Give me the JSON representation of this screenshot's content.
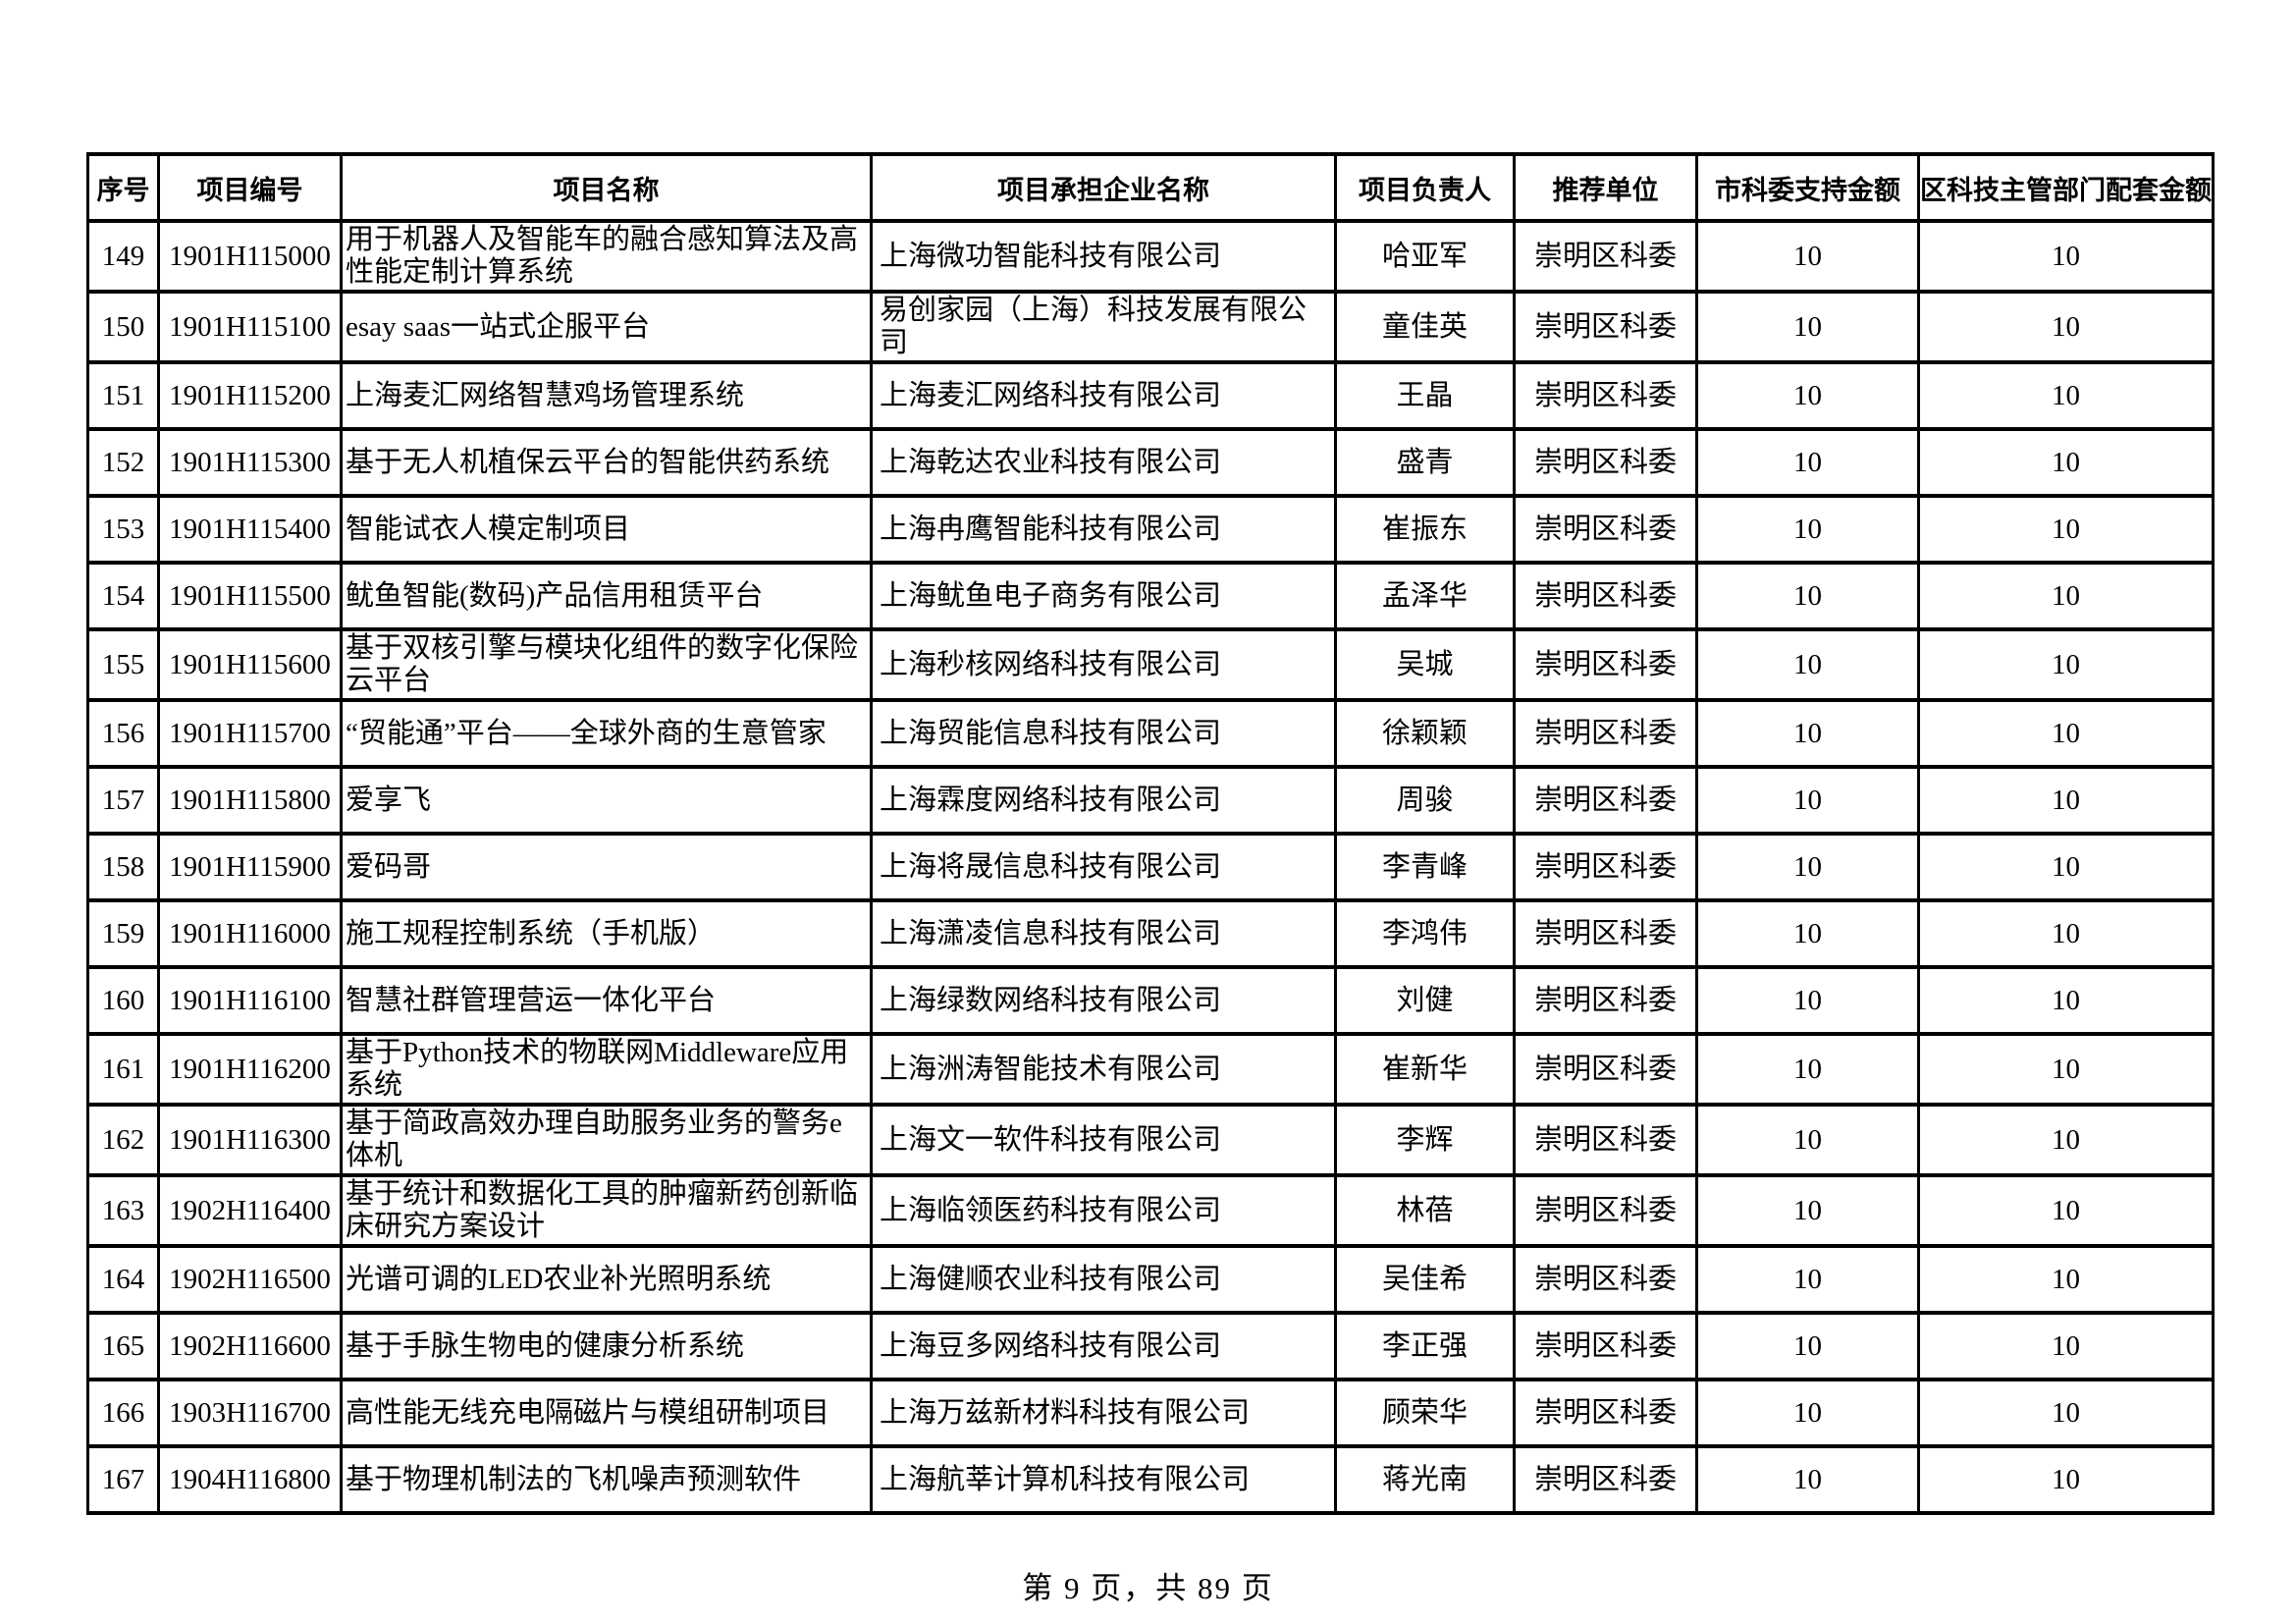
{
  "table": {
    "headers": [
      "序号",
      "项目编号",
      "项目名称",
      "项目承担企业名称",
      "项目负责人",
      "推荐单位",
      "市科委支持金额",
      "区科技主管部门配套金额"
    ],
    "rows": [
      {
        "index": "149",
        "code": "1901H115000",
        "name": "用于机器人及智能车的融合感知算法及高性能定制计算系统",
        "company": "上海微功智能科技有限公司",
        "leader": "哈亚军",
        "recommender": "崇明区科委",
        "city_amount": "10",
        "district_amount": "10"
      },
      {
        "index": "150",
        "code": "1901H115100",
        "name": "esay saas一站式企服平台",
        "company": "易创家园（上海）科技发展有限公司",
        "leader": "童佳英",
        "recommender": "崇明区科委",
        "city_amount": "10",
        "district_amount": "10"
      },
      {
        "index": "151",
        "code": "1901H115200",
        "name": "上海麦汇网络智慧鸡场管理系统",
        "company": "上海麦汇网络科技有限公司",
        "leader": "王晶",
        "recommender": "崇明区科委",
        "city_amount": "10",
        "district_amount": "10"
      },
      {
        "index": "152",
        "code": "1901H115300",
        "name": "基于无人机植保云平台的智能供药系统",
        "company": "上海乾达农业科技有限公司",
        "leader": "盛青",
        "recommender": "崇明区科委",
        "city_amount": "10",
        "district_amount": "10"
      },
      {
        "index": "153",
        "code": "1901H115400",
        "name": "智能试衣人模定制项目",
        "company": "上海冉鹰智能科技有限公司",
        "leader": "崔振东",
        "recommender": "崇明区科委",
        "city_amount": "10",
        "district_amount": "10"
      },
      {
        "index": "154",
        "code": "1901H115500",
        "name": "鱿鱼智能(数码)产品信用租赁平台",
        "company": "上海鱿鱼电子商务有限公司",
        "leader": "孟泽华",
        "recommender": "崇明区科委",
        "city_amount": "10",
        "district_amount": "10"
      },
      {
        "index": "155",
        "code": "1901H115600",
        "name": "基于双核引擎与模块化组件的数字化保险云平台",
        "company": "上海秒核网络科技有限公司",
        "leader": "吴城",
        "recommender": "崇明区科委",
        "city_amount": "10",
        "district_amount": "10"
      },
      {
        "index": "156",
        "code": "1901H115700",
        "name": "“贸能通”平台——全球外商的生意管家",
        "company": "上海贸能信息科技有限公司",
        "leader": "徐颖颖",
        "recommender": "崇明区科委",
        "city_amount": "10",
        "district_amount": "10"
      },
      {
        "index": "157",
        "code": "1901H115800",
        "name": "爱享飞",
        "company": "上海霖度网络科技有限公司",
        "leader": "周骏",
        "recommender": "崇明区科委",
        "city_amount": "10",
        "district_amount": "10"
      },
      {
        "index": "158",
        "code": "1901H115900",
        "name": "爱码哥",
        "company": "上海将晟信息科技有限公司",
        "leader": "李青峰",
        "recommender": "崇明区科委",
        "city_amount": "10",
        "district_amount": "10"
      },
      {
        "index": "159",
        "code": "1901H116000",
        "name": "施工规程控制系统（手机版）",
        "company": "上海潇凌信息科技有限公司",
        "leader": "李鸿伟",
        "recommender": "崇明区科委",
        "city_amount": "10",
        "district_amount": "10"
      },
      {
        "index": "160",
        "code": "1901H116100",
        "name": "智慧社群管理营运一体化平台",
        "company": "上海绿数网络科技有限公司",
        "leader": "刘健",
        "recommender": "崇明区科委",
        "city_amount": "10",
        "district_amount": "10"
      },
      {
        "index": "161",
        "code": "1901H116200",
        "name": "基于Python技术的物联网Middleware应用系统",
        "company": "上海洲涛智能技术有限公司",
        "leader": "崔新华",
        "recommender": "崇明区科委",
        "city_amount": "10",
        "district_amount": "10"
      },
      {
        "index": "162",
        "code": "1901H116300",
        "name": "基于简政高效办理自助服务业务的警务e体机",
        "company": "上海文一软件科技有限公司",
        "leader": "李辉",
        "recommender": "崇明区科委",
        "city_amount": "10",
        "district_amount": "10"
      },
      {
        "index": "163",
        "code": "1902H116400",
        "name": "基于统计和数据化工具的肿瘤新药创新临床研究方案设计",
        "company": "上海临领医药科技有限公司",
        "leader": "林蓓",
        "recommender": "崇明区科委",
        "city_amount": "10",
        "district_amount": "10"
      },
      {
        "index": "164",
        "code": "1902H116500",
        "name": "光谱可调的LED农业补光照明系统",
        "company": "上海健顺农业科技有限公司",
        "leader": "吴佳希",
        "recommender": "崇明区科委",
        "city_amount": "10",
        "district_amount": "10"
      },
      {
        "index": "165",
        "code": "1902H116600",
        "name": "基于手脉生物电的健康分析系统",
        "company": "上海豆多网络科技有限公司",
        "leader": "李正强",
        "recommender": "崇明区科委",
        "city_amount": "10",
        "district_amount": "10"
      },
      {
        "index": "166",
        "code": "1903H116700",
        "name": "高性能无线充电隔磁片与模组研制项目",
        "company": "上海万兹新材料科技有限公司",
        "leader": "顾荣华",
        "recommender": "崇明区科委",
        "city_amount": "10",
        "district_amount": "10"
      },
      {
        "index": "167",
        "code": "1904H116800",
        "name": "基于物理机制法的飞机噪声预测软件",
        "company": "上海航莘计算机科技有限公司",
        "leader": "蒋光南",
        "recommender": "崇明区科委",
        "city_amount": "10",
        "district_amount": "10"
      }
    ]
  },
  "footer": {
    "page_text": "第 9 页，共 89 页"
  }
}
